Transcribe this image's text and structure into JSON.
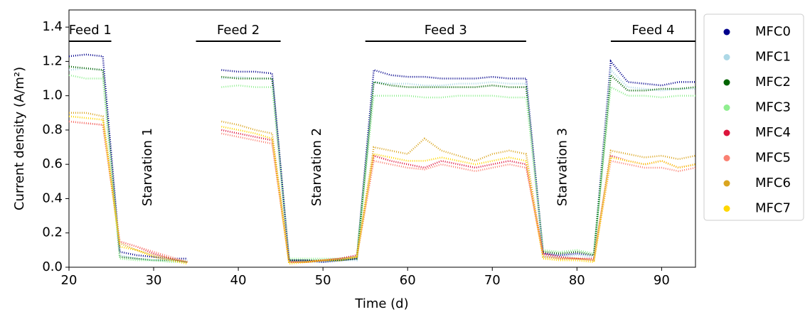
{
  "chart_data": {
    "type": "line",
    "xlabel": "Time (d)",
    "ylabel": "Current density (A/m²)",
    "xlim": [
      20,
      94
    ],
    "xticks": [
      20,
      30,
      40,
      50,
      60,
      70,
      80,
      90
    ],
    "ylim": [
      0,
      1.5
    ],
    "yticks": [
      {
        "value": 0,
        "label": "0.0"
      },
      {
        "value": 0.2,
        "label": "0.2"
      },
      {
        "value": 0.4,
        "label": "0.4"
      },
      {
        "value": 0.6,
        "label": "0.6"
      },
      {
        "value": 0.8,
        "label": "0.8"
      },
      {
        "value": 1.0,
        "label": "1.0"
      },
      {
        "value": 1.2,
        "label": "1.2"
      },
      {
        "value": 1.4,
        "label": "1.4"
      }
    ],
    "legend": "outside-right",
    "feeds": [
      {
        "label": "Feed 1",
        "start": 20,
        "end": 25
      },
      {
        "label": "Feed 2",
        "start": 35,
        "end": 45
      },
      {
        "label": "Feed 3",
        "start": 55,
        "end": 74
      },
      {
        "label": "Feed 4",
        "start": 84,
        "end": 94
      }
    ],
    "starvation_labels": [
      "Starvation 1",
      "Starvation 2",
      "Starvation 3"
    ],
    "x": [
      20,
      22,
      24,
      26,
      28,
      30,
      32,
      34,
      36,
      38,
      40,
      42,
      44,
      46,
      48,
      50,
      52,
      54,
      56,
      58,
      60,
      62,
      64,
      66,
      68,
      70,
      72,
      74,
      76,
      78,
      80,
      82,
      84,
      86,
      88,
      90,
      92,
      94
    ],
    "series": [
      {
        "name": "MFC0",
        "color": "#00008b",
        "values": [
          1.23,
          1.24,
          1.23,
          0.09,
          0.07,
          0.06,
          0.05,
          0.05,
          null,
          1.15,
          1.14,
          1.14,
          1.13,
          0.04,
          0.04,
          0.03,
          0.04,
          0.05,
          1.15,
          1.12,
          1.11,
          1.11,
          1.1,
          1.1,
          1.1,
          1.11,
          1.1,
          1.1,
          0.08,
          0.07,
          0.08,
          0.07,
          1.2,
          1.08,
          1.07,
          1.06,
          1.08,
          1.08
        ]
      },
      {
        "name": "MFC1",
        "color": "#add8e6",
        "values": [
          1.15,
          1.16,
          1.15,
          0.07,
          0.05,
          0.04,
          0.04,
          0.04,
          null,
          1.1,
          1.11,
          1.1,
          1.1,
          0.03,
          0.03,
          0.03,
          0.04,
          0.04,
          1.08,
          1.07,
          1.07,
          1.06,
          1.06,
          1.07,
          1.07,
          1.08,
          1.07,
          1.07,
          0.06,
          0.06,
          0.07,
          0.06,
          1.15,
          1.05,
          1.04,
          1.03,
          1.04,
          1.04
        ]
      },
      {
        "name": "MFC2",
        "color": "#006400",
        "values": [
          1.17,
          1.16,
          1.15,
          0.06,
          0.05,
          0.04,
          0.04,
          0.03,
          null,
          1.11,
          1.1,
          1.1,
          1.1,
          0.04,
          0.04,
          0.04,
          0.04,
          0.05,
          1.08,
          1.06,
          1.05,
          1.05,
          1.05,
          1.05,
          1.05,
          1.06,
          1.05,
          1.05,
          0.09,
          0.08,
          0.09,
          0.07,
          1.12,
          1.03,
          1.03,
          1.04,
          1.04,
          1.05
        ]
      },
      {
        "name": "MFC3",
        "color": "#90ee90",
        "values": [
          1.12,
          1.1,
          1.1,
          0.05,
          0.04,
          0.04,
          0.03,
          0.03,
          null,
          1.05,
          1.06,
          1.05,
          1.05,
          0.05,
          0.05,
          0.05,
          0.05,
          0.06,
          1.0,
          1.0,
          1.0,
          0.99,
          0.99,
          1.0,
          1.0,
          1.0,
          0.99,
          0.99,
          0.1,
          0.09,
          0.1,
          0.08,
          1.05,
          1.0,
          1.0,
          0.99,
          1.0,
          1.0
        ]
      },
      {
        "name": "MFC4",
        "color": "#dc143c",
        "values": [
          0.85,
          0.84,
          0.83,
          0.15,
          0.12,
          0.08,
          0.05,
          0.03,
          null,
          0.8,
          0.78,
          0.76,
          0.74,
          0.03,
          0.03,
          0.04,
          0.05,
          0.07,
          0.65,
          0.62,
          0.6,
          0.58,
          0.62,
          0.6,
          0.58,
          0.6,
          0.62,
          0.6,
          0.08,
          0.06,
          0.05,
          0.05,
          0.65,
          0.62,
          0.6,
          0.62,
          0.58,
          0.6
        ]
      },
      {
        "name": "MFC5",
        "color": "#fa8072",
        "values": [
          0.85,
          0.84,
          0.83,
          0.15,
          0.12,
          0.09,
          0.06,
          0.03,
          null,
          0.78,
          0.76,
          0.74,
          0.72,
          0.03,
          0.03,
          0.04,
          0.05,
          0.06,
          0.62,
          0.6,
          0.58,
          0.57,
          0.6,
          0.58,
          0.56,
          0.58,
          0.6,
          0.58,
          0.07,
          0.05,
          0.05,
          0.04,
          0.62,
          0.6,
          0.58,
          0.58,
          0.56,
          0.58
        ]
      },
      {
        "name": "MFC6",
        "color": "#daa520",
        "values": [
          0.9,
          0.9,
          0.88,
          0.14,
          0.1,
          0.07,
          0.05,
          0.03,
          null,
          0.85,
          0.83,
          0.8,
          0.78,
          0.03,
          0.03,
          0.04,
          0.05,
          0.06,
          0.7,
          0.68,
          0.66,
          0.75,
          0.68,
          0.65,
          0.62,
          0.66,
          0.68,
          0.66,
          0.06,
          0.05,
          0.05,
          0.04,
          0.68,
          0.66,
          0.64,
          0.65,
          0.63,
          0.65
        ]
      },
      {
        "name": "MFC7",
        "color": "#ffd700",
        "values": [
          0.88,
          0.87,
          0.86,
          0.12,
          0.1,
          0.06,
          0.04,
          0.02,
          null,
          0.82,
          0.8,
          0.78,
          0.75,
          0.02,
          0.03,
          0.04,
          0.04,
          0.06,
          0.66,
          0.64,
          0.62,
          0.62,
          0.64,
          0.62,
          0.6,
          0.62,
          0.64,
          0.62,
          0.05,
          0.04,
          0.04,
          0.03,
          0.64,
          0.62,
          0.6,
          0.62,
          0.58,
          0.6
        ]
      }
    ]
  }
}
